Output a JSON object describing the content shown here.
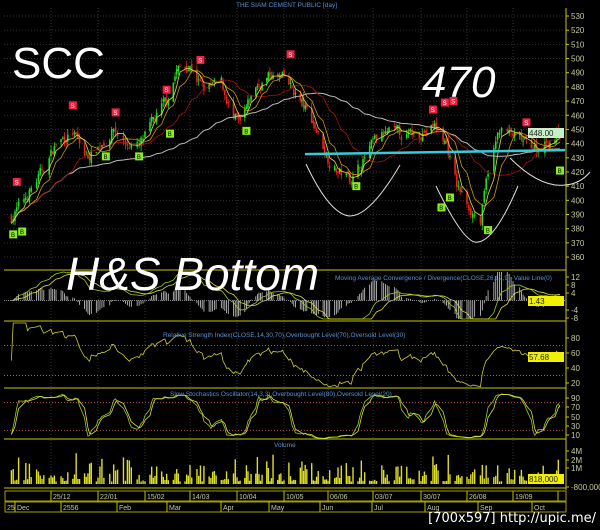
{
  "title": "THE SIAM CEMENT PUBLIC [day]",
  "annotations": {
    "ticker": "SCC",
    "target": "470",
    "pattern": "H&S Bottom"
  },
  "watermark": "[700x597] http://upic.me/",
  "colors": {
    "background": "#000000",
    "axis": "#c8c800",
    "up_candle": "#22dd22",
    "down_candle": "#ee2222",
    "neckline": "#33ccdd",
    "buy_marker": "#88ee22",
    "sell_marker": "#ee2244",
    "readout_price_bg": "#c8f0c8",
    "readout_bg": "#f0f000"
  },
  "panels": {
    "macd": {
      "title": "Moving Average Convergence / Divergence(CLOSE,26,12,9), Value Line(0)",
      "ticks": [
        "12",
        "8",
        "4",
        "-4",
        "-8"
      ],
      "readout": "1.43"
    },
    "rsi": {
      "title": "Relative Strength Index(CLOSE,14,30,70),Overbought Level(70),Oversold Level(30)",
      "ticks": [
        "80",
        "60",
        "40",
        "20"
      ],
      "readout": "57.68"
    },
    "stoch": {
      "title": "Slow Stochastics Oscillator(14,3,3),Overbought Level(80),Oversold Level(20)",
      "ticks": [
        "90",
        "70",
        "50",
        "30",
        "10"
      ]
    },
    "volume": {
      "title": "Volume",
      "ticks": [
        "4M",
        "2M",
        "1M",
        "-800,000"
      ],
      "readout": "818,000"
    }
  },
  "date_axis": {
    "row1": [
      "",
      "25/12",
      "22/01",
      "15/02",
      "14/03",
      "10/04",
      "10/05",
      "06/06",
      "03/07",
      "30/07",
      "26/08",
      "19/09",
      ""
    ],
    "row2": [
      "25",
      "Dec",
      "2556",
      "Feb",
      "Mar",
      "Apr",
      "May",
      "Jun",
      "Jul",
      "Aug",
      "Sep",
      "Oct"
    ]
  },
  "chart_data": {
    "type": "candlestick",
    "title": "THE SIAM CEMENT PUBLIC [day]",
    "ylim": [
      355,
      535
    ],
    "y_ticks": [
      530,
      520,
      510,
      500,
      490,
      480,
      470,
      460,
      450,
      440,
      430,
      420,
      410,
      400,
      390,
      380,
      370,
      360
    ],
    "last_price": "448.00",
    "grid": true,
    "neckline": 434,
    "close_trend": [
      [
        "2012-12-03",
        388
      ],
      [
        "2012-12-10",
        400
      ],
      [
        "2012-12-20",
        420
      ],
      [
        "2012-12-28",
        440
      ],
      [
        "2013-01-07",
        448
      ],
      [
        "2013-01-15",
        430
      ],
      [
        "2013-01-22",
        438
      ],
      [
        "2013-01-30",
        450
      ],
      [
        "2013-02-05",
        440
      ],
      [
        "2013-02-12",
        438
      ],
      [
        "2013-02-20",
        455
      ],
      [
        "2013-02-28",
        470
      ],
      [
        "2013-03-06",
        492
      ],
      [
        "2013-03-14",
        495
      ],
      [
        "2013-03-22",
        478
      ],
      [
        "2013-04-01",
        482
      ],
      [
        "2013-04-08",
        458
      ],
      [
        "2013-04-12",
        452
      ],
      [
        "2013-04-22",
        480
      ],
      [
        "2013-05-02",
        488
      ],
      [
        "2013-05-10",
        485
      ],
      [
        "2013-05-17",
        475
      ],
      [
        "2013-05-28",
        455
      ],
      [
        "2013-06-06",
        430
      ],
      [
        "2013-06-12",
        420
      ],
      [
        "2013-06-20",
        415
      ],
      [
        "2013-06-27",
        428
      ],
      [
        "2013-07-03",
        440
      ],
      [
        "2013-07-12",
        448
      ],
      [
        "2013-07-22",
        445
      ],
      [
        "2013-07-30",
        448
      ],
      [
        "2013-08-07",
        452
      ],
      [
        "2013-08-14",
        440
      ],
      [
        "2013-08-20",
        410
      ],
      [
        "2013-08-26",
        398
      ],
      [
        "2013-09-02",
        385
      ],
      [
        "2013-09-06",
        420
      ],
      [
        "2013-09-12",
        450
      ],
      [
        "2013-09-19",
        445
      ],
      [
        "2013-09-26",
        440
      ],
      [
        "2013-10-04",
        437
      ],
      [
        "2013-10-17",
        448
      ]
    ],
    "markers": [
      {
        "date": "2012-12-06",
        "type": "S",
        "price": 413
      },
      {
        "date": "2012-12-04",
        "type": "B",
        "price": 376
      },
      {
        "date": "2012-12-09",
        "type": "B",
        "price": 378
      },
      {
        "date": "2013-01-07",
        "type": "S",
        "price": 467
      },
      {
        "date": "2013-01-31",
        "type": "S",
        "price": 462
      },
      {
        "date": "2013-01-26",
        "type": "B",
        "price": 431
      },
      {
        "date": "2013-02-12",
        "type": "B",
        "price": 431
      },
      {
        "date": "2013-02-28",
        "type": "S",
        "price": 478
      },
      {
        "date": "2013-03-02",
        "type": "B",
        "price": 447
      },
      {
        "date": "2013-03-20",
        "type": "S",
        "price": 499
      },
      {
        "date": "2013-04-16",
        "type": "B",
        "price": 449
      },
      {
        "date": "2013-05-14",
        "type": "S",
        "price": 503
      },
      {
        "date": "2013-06-23",
        "type": "B",
        "price": 410
      },
      {
        "date": "2013-08-06",
        "type": "S",
        "price": 464
      },
      {
        "date": "2013-08-13",
        "type": "S",
        "price": 469
      },
      {
        "date": "2013-08-18",
        "type": "S",
        "price": 470
      },
      {
        "date": "2013-08-11",
        "type": "B",
        "price": 395
      },
      {
        "date": "2013-08-16",
        "type": "B",
        "price": 402
      },
      {
        "date": "2013-09-06",
        "type": "B",
        "price": 379
      },
      {
        "date": "2013-09-27",
        "type": "S",
        "price": 455
      },
      {
        "date": "2013-10-17",
        "type": "B",
        "price": 421
      }
    ]
  }
}
